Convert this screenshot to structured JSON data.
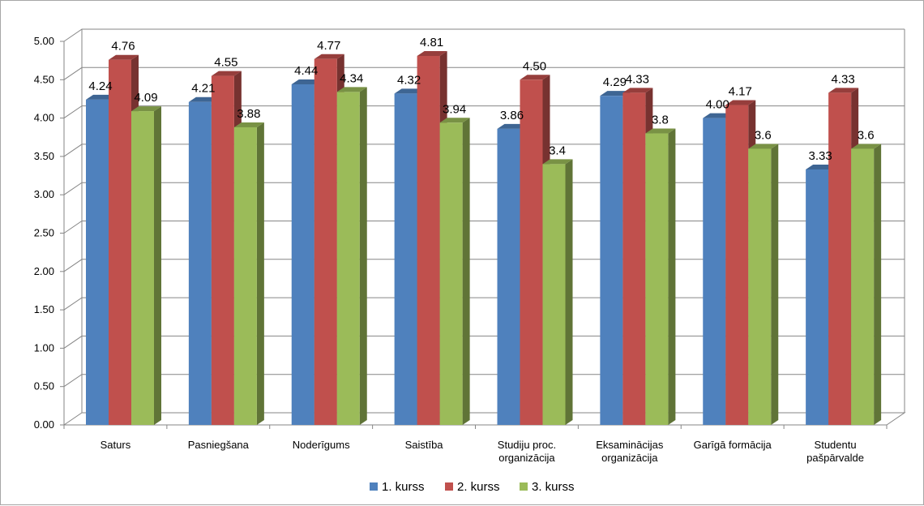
{
  "chart_data": {
    "type": "bar",
    "title": "",
    "xlabel": "",
    "ylabel": "",
    "ylim": [
      0,
      5
    ],
    "yticks": [
      "0.00",
      "0.50",
      "1.00",
      "1.50",
      "2.00",
      "2.50",
      "3.00",
      "3.50",
      "4.00",
      "4.50",
      "5.00"
    ],
    "grid": true,
    "legend_position": "bottom",
    "categories": [
      [
        "Saturs"
      ],
      [
        "Pasniegšana"
      ],
      [
        "Noderīgums"
      ],
      [
        "Saistība"
      ],
      [
        "Studiju proc.",
        "organizācija"
      ],
      [
        "Eksaminācijas",
        "organizācija"
      ],
      [
        "Garīgā formācija"
      ],
      [
        "Studentu",
        "pašpārvalde"
      ]
    ],
    "series": [
      {
        "name": "1. kurss",
        "color": "#4f81bd",
        "values": [
          4.24,
          4.21,
          4.44,
          4.32,
          3.86,
          4.29,
          4.0,
          3.33
        ],
        "labels": [
          "4.24",
          "4.21",
          "4.44",
          "4.32",
          "3.86",
          "4.29",
          "4.00",
          "3.33"
        ]
      },
      {
        "name": "2. kurss",
        "color": "#c0504d",
        "values": [
          4.76,
          4.55,
          4.77,
          4.81,
          4.5,
          4.33,
          4.17,
          4.33
        ],
        "labels": [
          "4.76",
          "4.55",
          "4.77",
          "4.81",
          "4.50",
          "4.33",
          "4.17",
          "4.33"
        ]
      },
      {
        "name": "3. kurss",
        "color": "#9bbb59",
        "values": [
          4.09,
          3.88,
          4.34,
          3.94,
          3.4,
          3.8,
          3.6,
          3.6
        ],
        "labels": [
          "4.09",
          "3.88",
          "4.34",
          "3.94",
          "3.4",
          "3.8",
          "3.6",
          "3.6"
        ]
      }
    ]
  }
}
